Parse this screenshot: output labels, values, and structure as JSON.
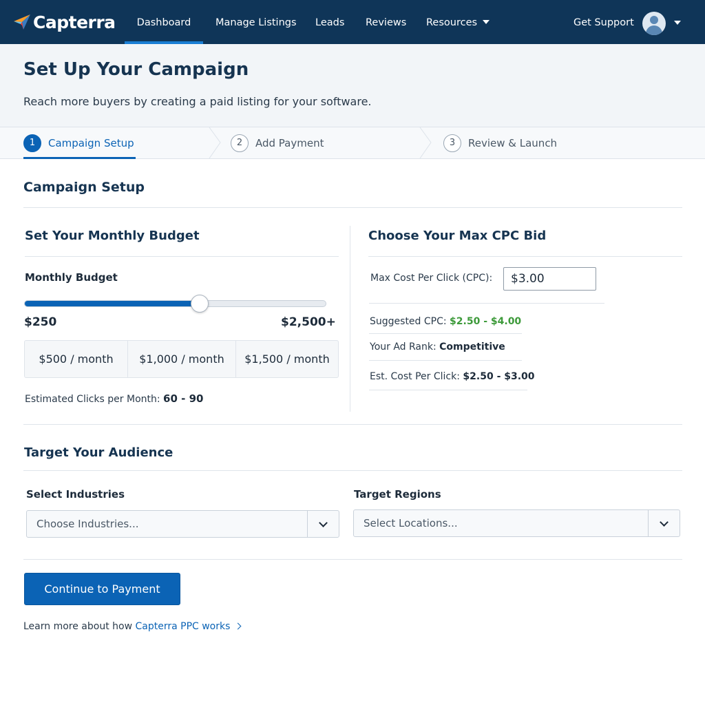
{
  "nav": {
    "brand": "Capterra",
    "items": [
      {
        "label": "Dashboard",
        "active": true
      },
      {
        "label": "Manage Listings"
      },
      {
        "label": "Leads"
      },
      {
        "label": "Reviews"
      },
      {
        "label": "Resources"
      }
    ],
    "support": "Get Support"
  },
  "header": {
    "title": "Set Up Your Campaign",
    "subtitle": "Reach more buyers by creating a paid listing for your software."
  },
  "steps": [
    {
      "num": "1",
      "label": "Campaign Setup",
      "active": true
    },
    {
      "num": "2",
      "label": "Add Payment"
    },
    {
      "num": "3",
      "label": "Review & Launch"
    }
  ],
  "campaign": {
    "title": "Campaign Setup",
    "budget": {
      "title": "Set Your Monthly Budget",
      "label": "Monthly Budget",
      "slider_level": 0.58,
      "min_label": "$250",
      "max_label": "$2,500+",
      "options": [
        "$500 / month",
        "$1,000 / month",
        "$1,500 / month"
      ],
      "est_clicks_label": "Estimated Clicks per Month:",
      "est_clicks_value": "60 - 90"
    },
    "cpc": {
      "title": "Choose Your Max CPC Bid",
      "input_label": "Max Cost Per Click (CPC):",
      "input_value": "$3.00",
      "suggested_label": "Suggested CPC:",
      "suggested_value": "$2.50 - $4.00",
      "rank_label": "Your Ad Rank:",
      "rank_value": "Competitive",
      "est_label": "Est. Cost Per Click:",
      "est_value": "$2.50 - $3.00"
    }
  },
  "audience": {
    "title": "Target Your Audience",
    "industries_label": "Select Industries",
    "industries_placeholder": "Choose Industries...",
    "regions_label": "Target Regions",
    "regions_placeholder": "Select Locations..."
  },
  "cta": {
    "label": "Continue to Payment",
    "learn_prefix": "Learn more about how ",
    "learn_link": "Capterra PPC works"
  },
  "colors": {
    "nav_bg": "#0f3558",
    "accent": "#0b63b5",
    "positive": "#3d9a3a"
  }
}
